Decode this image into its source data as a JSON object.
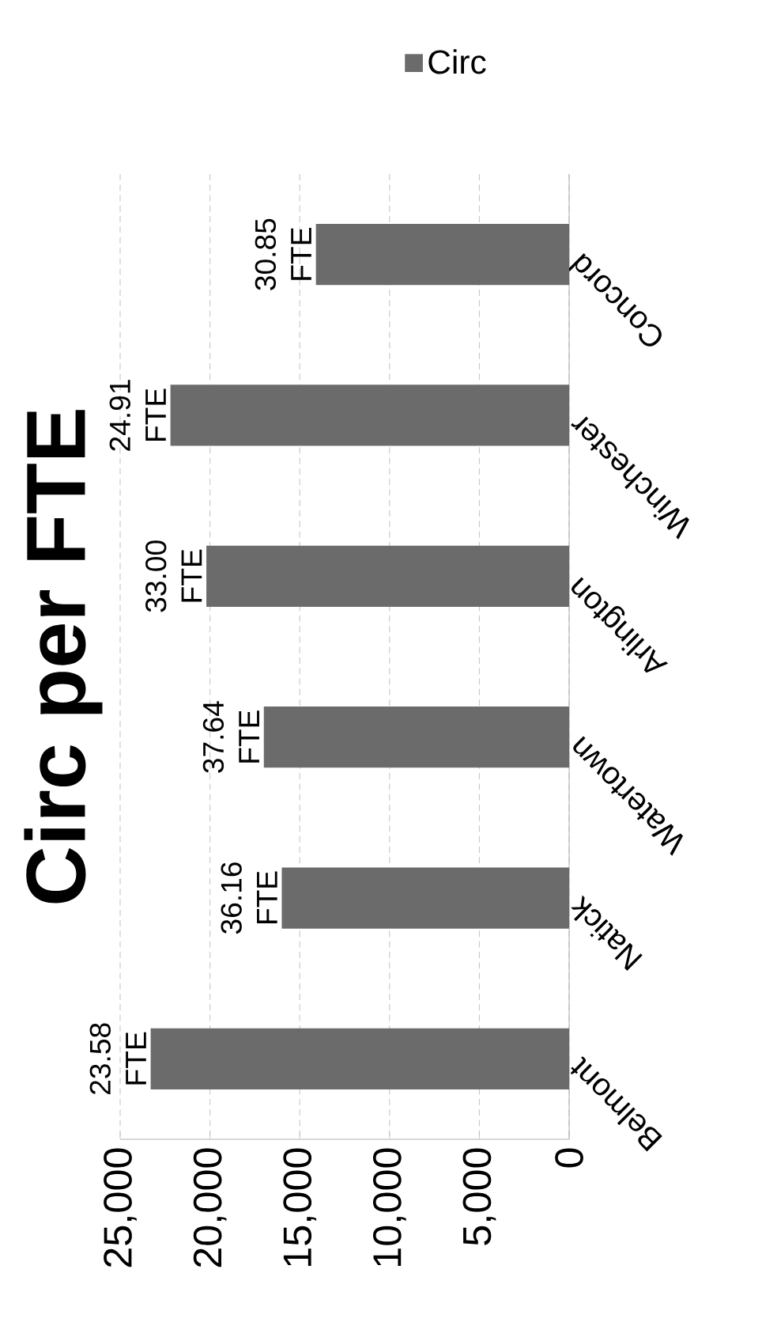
{
  "chart_data": {
    "type": "bar",
    "orientation": "horizontal",
    "title": "Circ per FTE",
    "categories": [
      "Concord",
      "Winchester",
      "Arlington",
      "Watertown",
      "Natick",
      "Belmont"
    ],
    "series": [
      {
        "name": "Circ",
        "color": "#6b6b6b",
        "values": [
          14100,
          22200,
          20200,
          17000,
          16000,
          23300
        ]
      }
    ],
    "xlim": [
      25000,
      0
    ],
    "xticks": [
      {
        "value": 0,
        "label": "0"
      },
      {
        "value": 5000,
        "label": "5,000"
      },
      {
        "value": 10000,
        "label": "10,000"
      },
      {
        "value": 15000,
        "label": "15,000"
      },
      {
        "value": 20000,
        "label": "20,000"
      },
      {
        "value": 25000,
        "label": "25,000"
      }
    ],
    "grid": "x",
    "legend": "top",
    "annotations": [
      "30.85 FTE",
      "24.91 FTE",
      "33.00 FTE",
      "37.64 FTE",
      "36.16 FTE",
      "23.58 FTE"
    ]
  }
}
